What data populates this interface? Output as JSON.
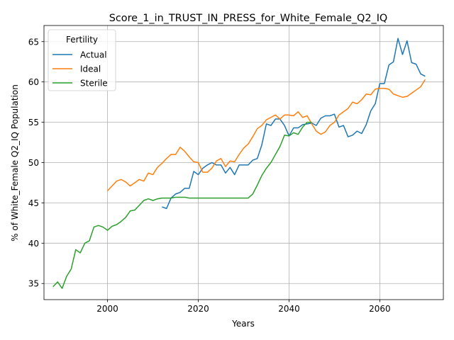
{
  "chart_data": {
    "type": "line",
    "title": "Score_1_in_TRUST_IN_PRESS_for_White_Female_Q2_IQ",
    "xlabel": "Years",
    "ylabel": "% of White_Female Q2_IQ Population",
    "xlim": [
      1986,
      2074
    ],
    "ylim": [
      33,
      67
    ],
    "xticks": [
      2000,
      2020,
      2040,
      2060
    ],
    "yticks": [
      35,
      40,
      45,
      50,
      55,
      60,
      65
    ],
    "grid": true,
    "legend": {
      "title": "Fertility",
      "placement": "top-left"
    },
    "series": [
      {
        "name": "Actual",
        "color": "#1f77b4",
        "x": [
          2012,
          2013,
          2014,
          2015,
          2016,
          2017,
          2018,
          2019,
          2020,
          2021,
          2022,
          2023,
          2024,
          2025,
          2026,
          2027,
          2028,
          2029,
          2030,
          2031,
          2032,
          2033,
          2034,
          2035,
          2036,
          2037,
          2038,
          2039,
          2040,
          2041,
          2042,
          2043,
          2044,
          2045,
          2046,
          2047,
          2048,
          2049,
          2050,
          2051,
          2052,
          2053,
          2054,
          2055,
          2056,
          2057,
          2058,
          2059,
          2060,
          2061,
          2062,
          2063,
          2064,
          2065,
          2066,
          2067,
          2068,
          2069,
          2070
        ],
        "values": [
          44.5,
          44.3,
          45.6,
          46.1,
          46.3,
          46.8,
          46.8,
          48.9,
          48.5,
          49.3,
          49.7,
          50.0,
          49.7,
          49.7,
          48.7,
          49.4,
          48.5,
          49.7,
          49.7,
          49.7,
          50.3,
          50.5,
          52.2,
          54.8,
          54.6,
          55.4,
          55.4,
          54.6,
          53.3,
          54.3,
          54.3,
          54.7,
          54.8,
          54.9,
          54.6,
          55.5,
          55.8,
          55.8,
          56.0,
          54.4,
          54.6,
          53.2,
          53.4,
          53.9,
          53.6,
          54.7,
          56.4,
          57.3,
          59.8,
          59.8,
          62.1,
          62.5,
          65.4,
          63.4,
          65.1,
          62.4,
          62.2,
          61.0,
          60.7
        ]
      },
      {
        "name": "Ideal",
        "color": "#ff7f0e",
        "x": [
          2000,
          2001,
          2002,
          2003,
          2004,
          2005,
          2006,
          2007,
          2008,
          2009,
          2010,
          2011,
          2012,
          2013,
          2014,
          2015,
          2016,
          2017,
          2018,
          2019,
          2020,
          2021,
          2022,
          2023,
          2024,
          2025,
          2026,
          2027,
          2028,
          2029,
          2030,
          2031,
          2032,
          2033,
          2034,
          2035,
          2036,
          2037,
          2038,
          2039,
          2040,
          2041,
          2042,
          2043,
          2044,
          2045,
          2046,
          2047,
          2048,
          2049,
          2050,
          2051,
          2052,
          2053,
          2054,
          2055,
          2056,
          2057,
          2058,
          2059,
          2060,
          2061,
          2062,
          2063,
          2064,
          2065,
          2066,
          2067,
          2068,
          2069,
          2070
        ],
        "values": [
          46.5,
          47.1,
          47.7,
          47.9,
          47.6,
          47.1,
          47.5,
          47.9,
          47.7,
          48.7,
          48.5,
          49.4,
          49.9,
          50.5,
          51.0,
          51.0,
          51.9,
          51.4,
          50.7,
          50.1,
          50.0,
          48.8,
          48.8,
          49.3,
          50.2,
          50.5,
          49.5,
          50.2,
          50.1,
          51.0,
          51.8,
          52.3,
          53.2,
          54.2,
          54.6,
          55.3,
          55.6,
          55.9,
          55.4,
          55.9,
          55.9,
          55.8,
          56.3,
          55.6,
          55.8,
          54.8,
          53.9,
          53.5,
          53.8,
          54.6,
          55.0,
          55.9,
          56.3,
          56.7,
          57.5,
          57.3,
          57.8,
          58.5,
          58.4,
          59.1,
          59.2,
          59.2,
          59.1,
          58.5,
          58.3,
          58.1,
          58.2,
          58.6,
          59.0,
          59.4,
          60.3
        ]
      },
      {
        "name": "Sterile",
        "color": "#2ca02c",
        "x": [
          1988,
          1989,
          1990,
          1991,
          1992,
          1993,
          1994,
          1995,
          1996,
          1997,
          1998,
          1999,
          2000,
          2001,
          2002,
          2003,
          2004,
          2005,
          2006,
          2007,
          2008,
          2009,
          2010,
          2011,
          2012,
          2013,
          2014,
          2015,
          2016,
          2017,
          2018,
          2019,
          2020,
          2021,
          2022,
          2023,
          2024,
          2025,
          2026,
          2027,
          2028,
          2029,
          2030,
          2031,
          2032,
          2033,
          2034,
          2035,
          2036,
          2037,
          2038,
          2039,
          2040,
          2041,
          2042,
          2043,
          2044,
          2045
        ],
        "values": [
          34.6,
          35.2,
          34.4,
          35.9,
          36.8,
          39.2,
          38.8,
          40.0,
          40.3,
          42.0,
          42.2,
          42.0,
          41.6,
          42.1,
          42.3,
          42.7,
          43.2,
          44.0,
          44.1,
          44.7,
          45.3,
          45.5,
          45.3,
          45.5,
          45.6,
          45.6,
          45.6,
          45.7,
          45.7,
          45.7,
          45.6,
          45.6,
          45.6,
          45.6,
          45.6,
          45.6,
          45.6,
          45.6,
          45.6,
          45.6,
          45.6,
          45.6,
          45.6,
          45.6,
          46.1,
          47.2,
          48.4,
          49.3,
          50.0,
          51.0,
          52.0,
          53.4,
          53.3,
          53.7,
          53.5,
          54.4,
          55.0,
          55.0
        ]
      }
    ]
  }
}
